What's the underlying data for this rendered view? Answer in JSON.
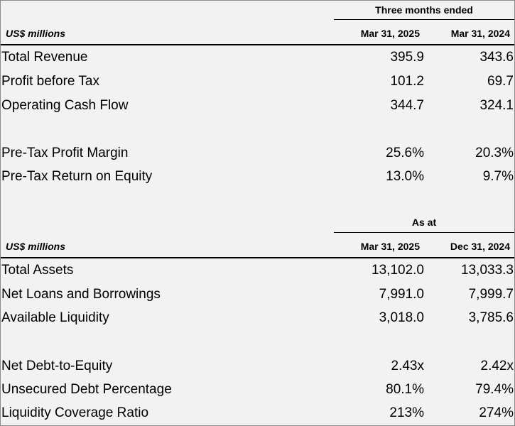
{
  "section1": {
    "group_header": "Three months ended",
    "unit_label": "US$ millions",
    "columns": [
      "Mar 31, 2025",
      "Mar 31, 2024"
    ],
    "rows": [
      {
        "label": "Total Revenue",
        "values": [
          "395.9",
          "343.6"
        ]
      },
      {
        "label": "Profit before Tax",
        "values": [
          "101.2",
          "69.7"
        ]
      },
      {
        "label": "Operating Cash Flow",
        "values": [
          "344.7",
          "324.1"
        ]
      },
      {
        "label": "Pre-Tax Profit Margin",
        "values": [
          "25.6%",
          "20.3%"
        ]
      },
      {
        "label": "Pre-Tax Return on Equity",
        "values": [
          "13.0%",
          "9.7%"
        ]
      }
    ]
  },
  "section2": {
    "group_header": "As at",
    "unit_label": "US$ millions",
    "columns": [
      "Mar 31, 2025",
      "Dec 31, 2024"
    ],
    "rows": [
      {
        "label": "Total Assets",
        "values": [
          "13,102.0",
          "13,033.3"
        ]
      },
      {
        "label": "Net Loans and Borrowings",
        "values": [
          "7,991.0",
          "7,999.7"
        ]
      },
      {
        "label": "Available Liquidity",
        "values": [
          "3,018.0",
          "3,785.6"
        ]
      },
      {
        "label": "Net Debt-to-Equity",
        "values": [
          "2.43x",
          "2.42x"
        ]
      },
      {
        "label": "Unsecured Debt Percentage",
        "values": [
          "80.1%",
          "79.4%"
        ]
      },
      {
        "label": "Liquidity Coverage Ratio",
        "values": [
          "213%",
          "274%"
        ]
      }
    ]
  }
}
